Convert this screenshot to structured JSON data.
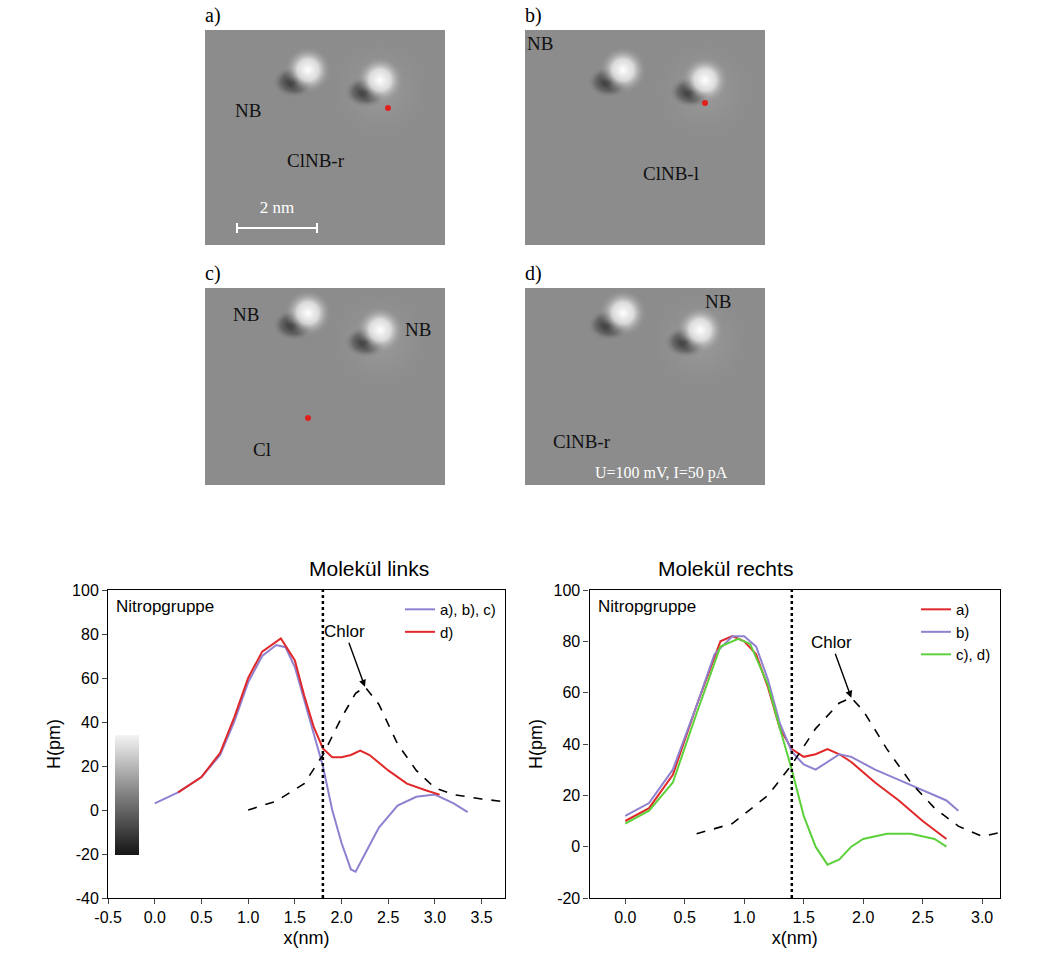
{
  "images": [
    {
      "label": "a)",
      "texts": [
        "NB",
        "ClNB-r"
      ],
      "scale_bar": "2 nm"
    },
    {
      "label": "b)",
      "texts": [
        "NB",
        "ClNB-l"
      ]
    },
    {
      "label": "c)",
      "texts": [
        "NB",
        "NB",
        "Cl"
      ]
    },
    {
      "label": "d)",
      "texts": [
        "NB",
        "ClNB-r",
        "U=100 mV, I=50 pA"
      ]
    }
  ],
  "chart_data": [
    {
      "type": "line",
      "title": "Molekül links",
      "x_label": "x(nm)",
      "y_label": "H(pm)",
      "annotations": [
        "Nitropgruppe",
        "Chlor"
      ],
      "divider_x": 1.8,
      "xlim": [
        -0.5,
        3.75
      ],
      "xticks": [
        -0.5,
        {
          "value": 0,
          "label": "0.0"
        },
        0.5,
        {
          "value": 1,
          "label": "1.0"
        },
        1.5,
        {
          "value": 2,
          "label": "2.0"
        },
        2.5,
        {
          "value": 3,
          "label": "3.0"
        },
        3.5
      ],
      "ylim": [
        -40,
        100
      ],
      "yticks": [
        -40,
        -20,
        0,
        20,
        40,
        60,
        80,
        100
      ],
      "grid": false,
      "legend": "upper right",
      "series": [
        {
          "name": "a), b), c)",
          "color": "#9080d0",
          "line_style": "solid",
          "x": [
            0,
            0.25,
            0.5,
            0.7,
            0.85,
            1.0,
            1.15,
            1.3,
            1.4,
            1.5,
            1.6,
            1.7,
            1.8,
            1.9,
            2.0,
            2.1,
            2.15,
            2.25,
            2.4,
            2.6,
            2.8,
            3.0,
            3.2,
            3.35
          ],
          "values": [
            3,
            8,
            15,
            25,
            40,
            58,
            70,
            75,
            74,
            65,
            50,
            35,
            20,
            0,
            -15,
            -27,
            -28,
            -20,
            -8,
            2,
            6,
            7,
            3,
            -1
          ]
        },
        {
          "name": "d)",
          "color": "#e0282a",
          "line_style": "solid",
          "x": [
            0.25,
            0.5,
            0.7,
            0.85,
            1.0,
            1.15,
            1.35,
            1.5,
            1.6,
            1.7,
            1.8,
            1.9,
            2.0,
            2.1,
            2.2,
            2.3,
            2.5,
            2.7,
            2.9,
            3.05
          ],
          "values": [
            8,
            15,
            26,
            42,
            60,
            72,
            78,
            68,
            52,
            38,
            28,
            24,
            24,
            25,
            27,
            25,
            18,
            12,
            9,
            7
          ]
        },
        {
          "color": "#000000",
          "line_style": "dash",
          "x": [
            1.0,
            1.3,
            1.6,
            1.8,
            2.0,
            2.15,
            2.25,
            2.4,
            2.6,
            2.8,
            3.0,
            3.2,
            3.5,
            3.7
          ],
          "values": [
            0,
            4,
            12,
            25,
            42,
            53,
            56,
            48,
            30,
            18,
            10,
            7,
            5,
            4
          ]
        }
      ]
    },
    {
      "type": "line",
      "title": "Molekül rechts",
      "x_label": "x(nm)",
      "y_label": "H(pm)",
      "annotations": [
        "Nitropgruppe",
        "Chlor"
      ],
      "divider_x": 1.4,
      "xlim": [
        -0.3,
        3.15
      ],
      "xticks": [
        {
          "value": 0,
          "label": "0.0"
        },
        0.5,
        {
          "value": 1,
          "label": "1.0"
        },
        1.5,
        {
          "value": 2,
          "label": "2.0"
        },
        2.5,
        {
          "value": 3,
          "label": "3.0"
        }
      ],
      "ylim": [
        -20,
        100
      ],
      "yticks": [
        -20,
        0,
        20,
        40,
        60,
        80,
        100
      ],
      "grid": false,
      "legend": "upper right",
      "series": [
        {
          "name": "a)",
          "color": "#e0282a",
          "line_style": "solid",
          "x": [
            0,
            0.2,
            0.4,
            0.6,
            0.8,
            0.9,
            1.0,
            1.1,
            1.2,
            1.3,
            1.4,
            1.5,
            1.6,
            1.7,
            1.8,
            1.9,
            2.1,
            2.3,
            2.5,
            2.7
          ],
          "values": [
            10,
            15,
            28,
            55,
            80,
            82,
            80,
            75,
            62,
            46,
            38,
            35,
            36,
            38,
            36,
            33,
            25,
            18,
            10,
            3
          ]
        },
        {
          "name": "b)",
          "color": "#9080d0",
          "line_style": "solid",
          "x": [
            0,
            0.2,
            0.4,
            0.6,
            0.75,
            0.9,
            1.0,
            1.1,
            1.2,
            1.3,
            1.4,
            1.5,
            1.6,
            1.7,
            1.8,
            1.9,
            2.1,
            2.3,
            2.5,
            2.7,
            2.8
          ],
          "values": [
            12,
            17,
            30,
            55,
            75,
            82,
            82,
            78,
            65,
            48,
            37,
            32,
            30,
            33,
            36,
            35,
            30,
            26,
            22,
            18,
            14
          ]
        },
        {
          "name": "c), d)",
          "color": "#5cd13c",
          "line_style": "solid",
          "x": [
            0,
            0.2,
            0.4,
            0.6,
            0.8,
            0.95,
            1.05,
            1.2,
            1.3,
            1.4,
            1.5,
            1.6,
            1.7,
            1.8,
            1.9,
            2.0,
            2.2,
            2.4,
            2.6,
            2.7
          ],
          "values": [
            9,
            14,
            25,
            52,
            78,
            81,
            79,
            63,
            46,
            30,
            12,
            0,
            -7,
            -5,
            0,
            3,
            5,
            5,
            3,
            0
          ]
        },
        {
          "color": "#000000",
          "line_style": "dash",
          "x": [
            0.6,
            0.9,
            1.2,
            1.4,
            1.6,
            1.8,
            1.9,
            2.0,
            2.2,
            2.4,
            2.6,
            2.8,
            3.0,
            3.2
          ],
          "values": [
            5,
            9,
            20,
            32,
            46,
            56,
            58,
            53,
            38,
            25,
            15,
            8,
            4,
            6
          ]
        }
      ]
    }
  ]
}
